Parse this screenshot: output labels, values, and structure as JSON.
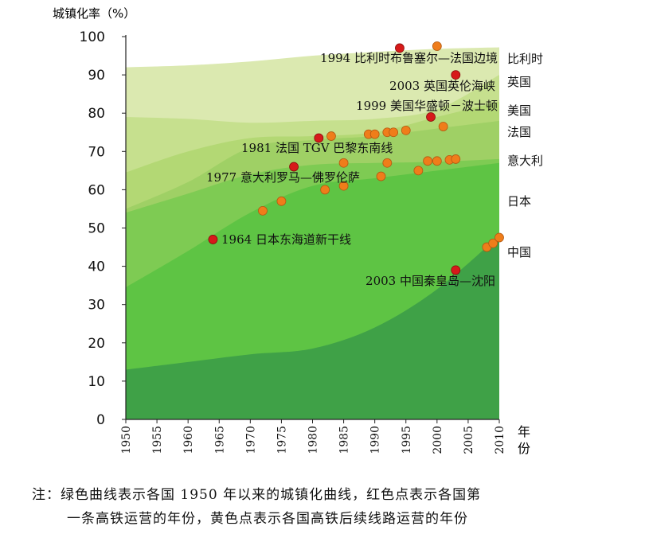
{
  "chart_data": {
    "type": "area",
    "ylabel": "城镇化率（%）",
    "xlabel": "年份",
    "ylim": [
      0,
      100
    ],
    "yticks": [
      0,
      10,
      20,
      30,
      40,
      50,
      60,
      70,
      80,
      90,
      100
    ],
    "xlim": [
      1950,
      2010
    ],
    "xticks": [
      1950,
      1955,
      1960,
      1965,
      1970,
      1975,
      1980,
      1985,
      1990,
      1995,
      2000,
      2005,
      2010
    ],
    "series": [
      {
        "name": "比利时",
        "color": "#dbe9b0",
        "x": [
          1950,
          1960,
          1970,
          1980,
          1990,
          2000,
          2010
        ],
        "values": [
          92,
          92.5,
          93.5,
          95,
          96,
          96.8,
          97.2
        ]
      },
      {
        "name": "英国",
        "color": "#c6e08e",
        "x": [
          1950,
          1960,
          1970,
          1980,
          1990,
          2000,
          2010
        ],
        "values": [
          79,
          78.5,
          77.5,
          78,
          78.5,
          81,
          90
        ]
      },
      {
        "name": "美国",
        "color": "#b3d874",
        "x": [
          1950,
          1960,
          1970,
          1980,
          1990,
          2000,
          2010
        ],
        "values": [
          64.5,
          70,
          73.5,
          74,
          75,
          79,
          83
        ]
      },
      {
        "name": "法国",
        "color": "#9fd065",
        "x": [
          1950,
          1960,
          1970,
          1980,
          1990,
          2000,
          2010
        ],
        "values": [
          55,
          62,
          71,
          73,
          74,
          76,
          78
        ]
      },
      {
        "name": "意大利",
        "color": "#7ecb53",
        "x": [
          1950,
          1960,
          1970,
          1980,
          1990,
          2000,
          2010
        ],
        "values": [
          54,
          59,
          64,
          66.5,
          67,
          67.3,
          68
        ]
      },
      {
        "name": "日本",
        "color": "#5ec444",
        "x": [
          1950,
          1960,
          1970,
          1980,
          1990,
          2000,
          2010
        ],
        "values": [
          34.5,
          44,
          54,
          61,
          63,
          65,
          67
        ]
      },
      {
        "name": "中国",
        "color": "#3fa147",
        "x": [
          1950,
          1960,
          1970,
          1980,
          1990,
          2000,
          2010
        ],
        "values": [
          13,
          15,
          17,
          18.5,
          24,
          34,
          48
        ]
      }
    ],
    "first_lines": [
      {
        "year": 1964,
        "value": 47,
        "label": "1964 日本东海道新干线"
      },
      {
        "year": 1977,
        "value": 66,
        "label": "1977 意大利罗马—佛罗伦萨"
      },
      {
        "year": 1981,
        "value": 73.5,
        "label": "1981 法国 TGV 巴黎东南线"
      },
      {
        "year": 1994,
        "value": 97,
        "label": "1994 比利时布鲁塞尔—法国边境"
      },
      {
        "year": 1999,
        "value": 79,
        "label": "1999 美国华盛顿－波士顿"
      },
      {
        "year": 2003,
        "value": 90,
        "label": "2003 英国英伦海峡"
      },
      {
        "year": 2003,
        "value": 39,
        "label": "2003 中国秦皇岛—沈阳"
      }
    ],
    "subsequent_lines": [
      {
        "year": 1972,
        "value": 54.5
      },
      {
        "year": 1975,
        "value": 57
      },
      {
        "year": 1982,
        "value": 60
      },
      {
        "year": 1985,
        "value": 61
      },
      {
        "year": 1991,
        "value": 63.5
      },
      {
        "year": 1997,
        "value": 65
      },
      {
        "year": 1985,
        "value": 67
      },
      {
        "year": 1992,
        "value": 67
      },
      {
        "year": 1998.5,
        "value": 67.5
      },
      {
        "year": 2000,
        "value": 67.5
      },
      {
        "year": 2002,
        "value": 67.8
      },
      {
        "year": 2003,
        "value": 68
      },
      {
        "year": 1983,
        "value": 74
      },
      {
        "year": 1989,
        "value": 74.5
      },
      {
        "year": 1990,
        "value": 74.5
      },
      {
        "year": 1992,
        "value": 75
      },
      {
        "year": 1993,
        "value": 75
      },
      {
        "year": 1995,
        "value": 75.5
      },
      {
        "year": 2001,
        "value": 76.5
      },
      {
        "year": 2000,
        "value": 97.5
      },
      {
        "year": 2008,
        "value": 45
      },
      {
        "year": 2009,
        "value": 46
      },
      {
        "year": 2010,
        "value": 47.5
      }
    ],
    "dot_colors": {
      "first": "#d71a1a",
      "subsequent": "#ef7d1a"
    }
  },
  "note": {
    "line1": "注：绿色曲线表示各国 1950 年以来的城镇化曲线，红色点表示各国第",
    "line2": "一条高铁运营的年份，黄色点表示各国高铁后续线路运营的年份"
  }
}
